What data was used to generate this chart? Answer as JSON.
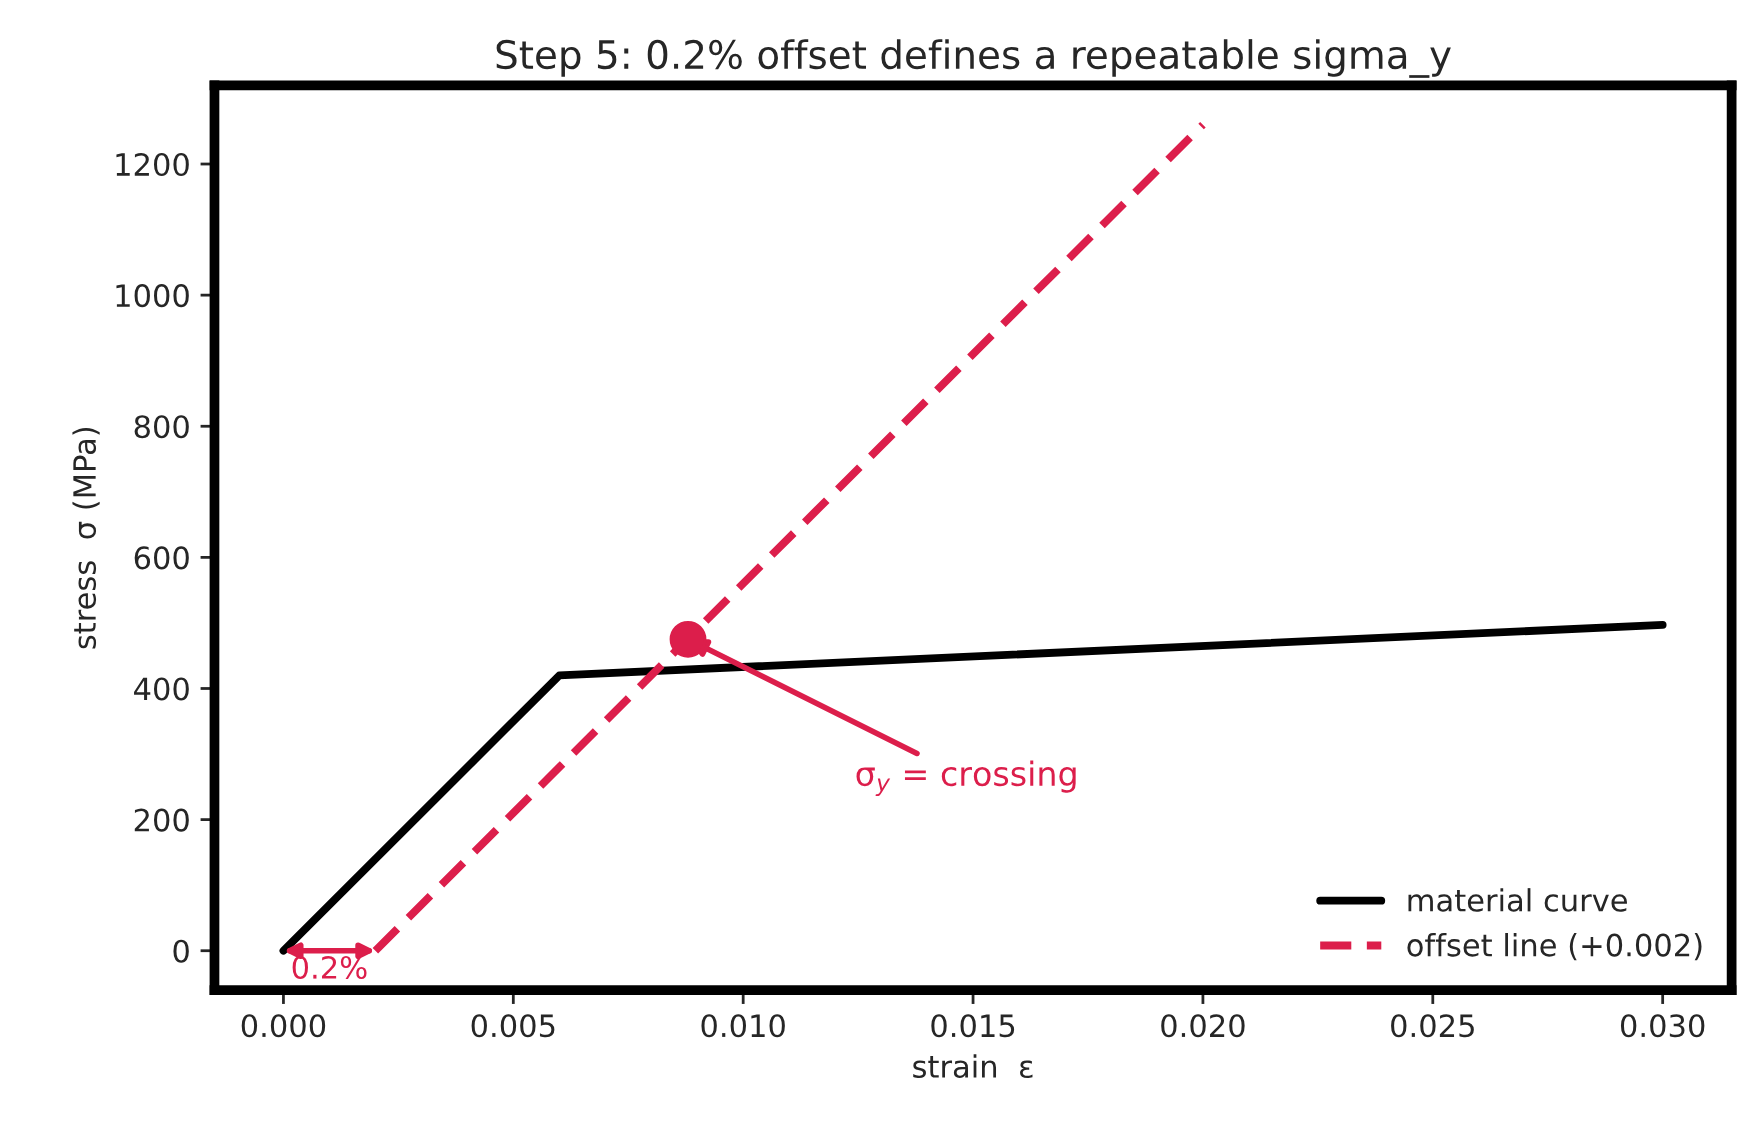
{
  "chart_data": {
    "type": "line",
    "title": "Step 5: 0.2% offset defines a repeatable sigma_y",
    "xlabel": "strain  ε",
    "ylabel": "stress  σ (MPa)",
    "series": [
      {
        "name": "material curve",
        "color": "#000000",
        "x": [
          0.0,
          0.006,
          0.03
        ],
        "values": [
          0,
          420,
          497
        ],
        "line_style": "solid"
      },
      {
        "name": "offset line (+0.002)",
        "color": "#dc1e4b",
        "x": [
          0.002,
          0.02
        ],
        "values": [
          0,
          1260
        ],
        "line_style": "dashed"
      },
      {
        "type": "scatter",
        "color": "#dc1e4b",
        "x": [
          0.0088
        ],
        "values": [
          475
        ],
        "marker": "circle"
      }
    ],
    "annotations": [
      {
        "text": "σ$_{y}$ = crossing",
        "x": 0.0088,
        "y": 475
      },
      "0.2%"
    ],
    "xlim": [
      -0.0015,
      0.0315
    ],
    "ylim": [
      -60,
      1320
    ],
    "xticks": [
      {
        "value": 0,
        "label": "0.000"
      },
      0.005,
      {
        "value": 0.01,
        "label": "0.010"
      },
      0.015,
      {
        "value": 0.02,
        "label": "0.020"
      },
      0.025,
      {
        "value": 0.03,
        "label": "0.030"
      }
    ],
    "yticks": [
      0,
      200,
      400,
      600,
      800,
      1000,
      1200
    ],
    "legend": "bottom right",
    "grid": false
  }
}
